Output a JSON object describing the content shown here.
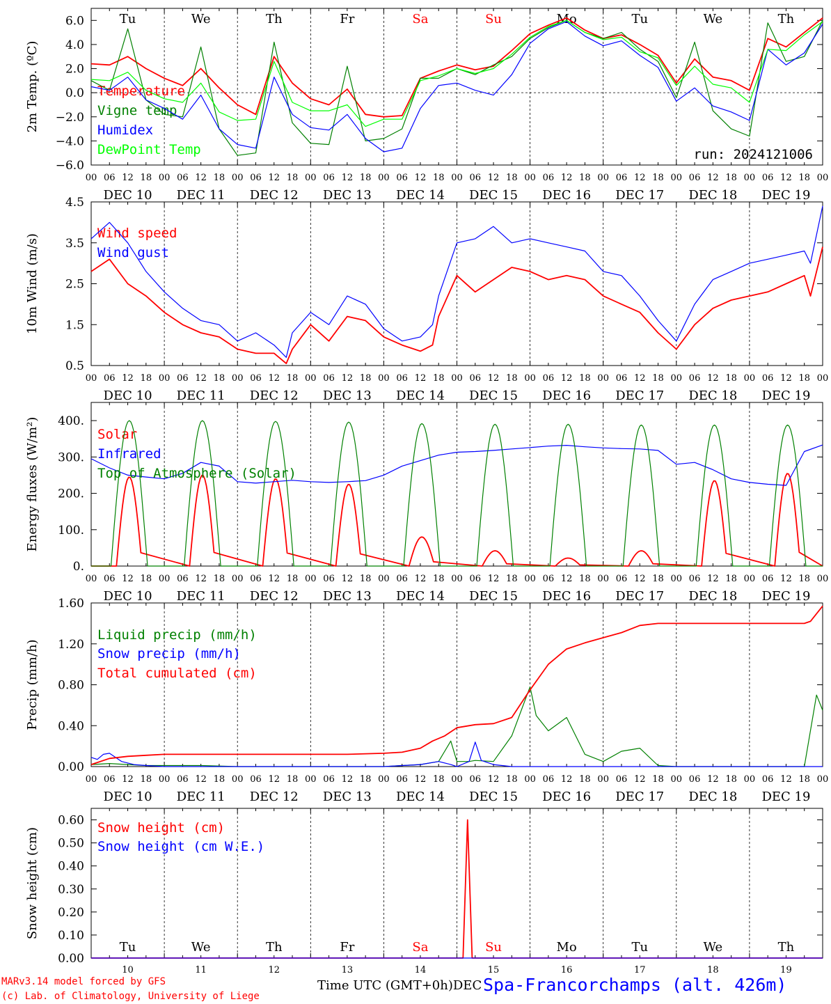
{
  "run_label": "run: 2024121006",
  "footer": {
    "model": "MARv3.14 model forced by GFS",
    "credit": "(c) Lab. of Climatology, University of Liege",
    "time_axis": "Time UTC (GMT+0h)",
    "axis_word": "DEC",
    "station": "Spa-Francorchamps (alt. 426m)"
  },
  "colors": {
    "red": "#ff0000",
    "green": "#008000",
    "blue": "#0000ff",
    "lightgreen": "#00ff00"
  },
  "weekdays": [
    "Tu",
    "We",
    "Th",
    "Fr",
    "Sa",
    "Su",
    "Mo",
    "Tu",
    "We",
    "Th"
  ],
  "weekday_colors": [
    "#000000",
    "#000000",
    "#000000",
    "#000000",
    "#ff0000",
    "#ff0000",
    "#000000",
    "#000000",
    "#000000",
    "#000000"
  ],
  "hour_ticks": [
    "00",
    "06",
    "12",
    "18"
  ],
  "final_hour_tick": "00",
  "date_labels": [
    "DEC 10",
    "DEC 11",
    "DEC 12",
    "DEC 13",
    "DEC 14",
    "DEC 15",
    "DEC 16",
    "DEC 17",
    "DEC 18",
    "DEC 19"
  ],
  "day_numbers": [
    "10",
    "11",
    "12",
    "13",
    "14",
    "15",
    "16",
    "17",
    "18",
    "19"
  ],
  "chart_data": [
    {
      "type": "line",
      "ylabel": "2m Temp. (ºC)",
      "ylim": [
        -6,
        7
      ],
      "yticks": [
        -6,
        -4,
        -2,
        0,
        2,
        4,
        6
      ],
      "ytick_labels": [
        "−6.0",
        "−4.0",
        "−2.0",
        "0.0",
        "2.0",
        "4.0",
        "6.0"
      ],
      "zero_line": true,
      "x_unit": "hours since 2024-12-10 00 UTC",
      "xlim": [
        0,
        240
      ],
      "series": [
        {
          "name": "Temperature",
          "color": "#ff0000",
          "x": [
            0,
            6,
            12,
            18,
            24,
            30,
            36,
            42,
            48,
            54,
            60,
            66,
            72,
            78,
            84,
            90,
            96,
            102,
            108,
            114,
            120,
            126,
            132,
            138,
            144,
            150,
            156,
            162,
            168,
            174,
            180,
            186,
            192,
            198,
            204,
            210,
            216,
            222,
            228,
            234,
            240
          ],
          "values": [
            2.4,
            2.3,
            3.0,
            2.0,
            1.2,
            0.6,
            2.0,
            0.4,
            -1.0,
            -1.8,
            3.0,
            0.8,
            -0.5,
            -1.0,
            0.3,
            -1.8,
            -2.0,
            -1.9,
            1.2,
            1.8,
            2.3,
            1.9,
            2.2,
            3.5,
            4.9,
            5.6,
            6.2,
            5.2,
            4.5,
            4.8,
            4.0,
            3.1,
            0.8,
            2.8,
            1.3,
            1.0,
            0.2,
            4.5,
            3.8,
            5.0,
            6.2
          ]
        },
        {
          "name": "Vigne temp",
          "color": "#008000",
          "x": [
            0,
            6,
            12,
            18,
            24,
            30,
            36,
            42,
            48,
            54,
            60,
            66,
            72,
            78,
            84,
            90,
            96,
            102,
            108,
            114,
            120,
            126,
            132,
            138,
            144,
            150,
            156,
            162,
            168,
            174,
            180,
            186,
            192,
            198,
            204,
            210,
            216,
            222,
            228,
            234,
            240
          ],
          "values": [
            1.0,
            0.2,
            5.3,
            -0.6,
            -1.8,
            -2.0,
            3.8,
            -3.0,
            -5.2,
            -5.0,
            4.2,
            -2.5,
            -4.2,
            -4.3,
            2.2,
            -4.0,
            -3.8,
            -3.0,
            1.2,
            1.2,
            2.0,
            1.5,
            2.3,
            3.0,
            4.5,
            5.4,
            6.0,
            5.0,
            4.5,
            5.0,
            3.6,
            2.6,
            -0.4,
            4.2,
            -1.5,
            -3.0,
            -3.6,
            5.8,
            2.6,
            3.0,
            6.0
          ]
        },
        {
          "name": "Humidex",
          "color": "#0000ff",
          "x": [
            0,
            6,
            12,
            18,
            24,
            30,
            36,
            42,
            48,
            54,
            60,
            66,
            72,
            78,
            84,
            90,
            96,
            102,
            108,
            114,
            120,
            126,
            132,
            138,
            144,
            150,
            156,
            162,
            168,
            174,
            180,
            186,
            192,
            198,
            204,
            210,
            216,
            222,
            228,
            234,
            240
          ],
          "values": [
            0.5,
            0.2,
            1.3,
            -0.6,
            -1.3,
            -2.2,
            -0.2,
            -3.0,
            -4.3,
            -4.6,
            1.3,
            -1.8,
            -2.9,
            -3.1,
            -1.8,
            -3.8,
            -4.9,
            -4.6,
            -1.3,
            0.6,
            0.8,
            0.2,
            -0.2,
            1.5,
            4.1,
            5.3,
            5.9,
            4.7,
            3.9,
            4.3,
            3.1,
            2.1,
            -0.7,
            0.4,
            -1.1,
            -1.6,
            -2.3,
            3.6,
            2.3,
            3.3,
            5.7
          ]
        },
        {
          "name": "DewPoint Temp",
          "color": "#00ff00",
          "x": [
            0,
            6,
            12,
            18,
            24,
            30,
            36,
            42,
            48,
            54,
            60,
            66,
            72,
            78,
            84,
            90,
            96,
            102,
            108,
            114,
            120,
            126,
            132,
            138,
            144,
            150,
            156,
            162,
            168,
            174,
            180,
            186,
            192,
            198,
            204,
            210,
            216,
            222,
            228,
            234,
            240
          ],
          "values": [
            1.1,
            1.0,
            1.7,
            0.2,
            -0.5,
            -0.8,
            0.8,
            -1.6,
            -2.3,
            -2.2,
            2.6,
            -0.8,
            -1.5,
            -1.5,
            -1.0,
            -2.8,
            -2.2,
            -2.2,
            1.0,
            1.4,
            2.0,
            1.6,
            2.0,
            3.2,
            4.6,
            5.5,
            6.0,
            5.0,
            4.4,
            4.6,
            3.4,
            2.9,
            0.6,
            2.2,
            0.7,
            0.4,
            -0.8,
            3.6,
            3.5,
            4.8,
            5.9
          ]
        }
      ]
    },
    {
      "type": "line",
      "ylabel": "10m Wind (m/s)",
      "ylim": [
        0.5,
        4.5
      ],
      "yticks": [
        0.5,
        1.5,
        2.5,
        3.5,
        4.5
      ],
      "ytick_labels": [
        "0.5",
        "1.5",
        "2.5",
        "3.5",
        "4.5"
      ],
      "x_unit": "hours since 2024-12-10 00 UTC",
      "xlim": [
        0,
        240
      ],
      "series": [
        {
          "name": "Wind speed",
          "color": "#ff0000",
          "x": [
            0,
            6,
            12,
            18,
            24,
            30,
            36,
            42,
            48,
            54,
            60,
            64,
            66,
            72,
            78,
            84,
            90,
            96,
            102,
            108,
            112,
            114,
            120,
            126,
            132,
            138,
            144,
            150,
            156,
            162,
            168,
            174,
            180,
            186,
            192,
            198,
            204,
            210,
            216,
            222,
            228,
            234,
            236,
            240
          ],
          "values": [
            2.8,
            3.1,
            2.5,
            2.2,
            1.8,
            1.5,
            1.3,
            1.2,
            0.9,
            0.8,
            0.8,
            0.55,
            0.9,
            1.5,
            1.1,
            1.7,
            1.6,
            1.2,
            1.0,
            0.85,
            1.0,
            1.7,
            2.7,
            2.3,
            2.6,
            2.9,
            2.8,
            2.6,
            2.7,
            2.6,
            2.2,
            2.0,
            1.8,
            1.3,
            0.9,
            1.5,
            1.9,
            2.1,
            2.2,
            2.3,
            2.5,
            2.7,
            2.2,
            3.4
          ]
        },
        {
          "name": "Wind gust",
          "color": "#0000ff",
          "x": [
            0,
            6,
            12,
            18,
            24,
            30,
            36,
            42,
            48,
            54,
            60,
            64,
            66,
            72,
            78,
            84,
            90,
            96,
            102,
            108,
            112,
            114,
            120,
            126,
            132,
            138,
            144,
            150,
            156,
            162,
            168,
            174,
            180,
            186,
            192,
            198,
            204,
            210,
            216,
            222,
            228,
            234,
            236,
            240
          ],
          "values": [
            3.6,
            4.0,
            3.5,
            2.8,
            2.3,
            1.9,
            1.6,
            1.5,
            1.1,
            1.3,
            1.0,
            0.7,
            1.3,
            1.8,
            1.5,
            2.2,
            2.0,
            1.4,
            1.1,
            1.2,
            1.5,
            2.2,
            3.5,
            3.6,
            3.9,
            3.5,
            3.6,
            3.5,
            3.4,
            3.3,
            2.8,
            2.7,
            2.2,
            1.6,
            1.1,
            2.0,
            2.6,
            2.8,
            3.0,
            3.1,
            3.2,
            3.3,
            3.0,
            4.4
          ]
        }
      ]
    },
    {
      "type": "line",
      "ylabel": "Energy fluxes (W/m²)",
      "ylim": [
        0,
        450
      ],
      "yticks": [
        0,
        100,
        200,
        300,
        400
      ],
      "ytick_labels": [
        "0.",
        "100.",
        "200.",
        "300.",
        "400."
      ],
      "x_unit": "hours since 2024-12-10 00 UTC",
      "xlim": [
        0,
        240
      ],
      "diurnal": {
        "solar_peaks": [
          245,
          250,
          240,
          225,
          80,
          42,
          22,
          42,
          235,
          255
        ],
        "toa_peaks": [
          400,
          400,
          398,
          396,
          392,
          390,
          390,
          388,
          388,
          388
        ],
        "peak_hour": 12.5
      },
      "series": [
        {
          "name": "Solar",
          "color": "#ff0000"
        },
        {
          "name": "Infrared",
          "color": "#0000ff",
          "x": [
            0,
            6,
            12,
            18,
            24,
            30,
            36,
            42,
            48,
            54,
            60,
            66,
            72,
            78,
            84,
            90,
            96,
            102,
            108,
            114,
            120,
            126,
            132,
            138,
            144,
            150,
            156,
            162,
            168,
            174,
            180,
            186,
            192,
            198,
            204,
            210,
            216,
            222,
            228,
            234,
            240
          ],
          "values": [
            295,
            270,
            250,
            245,
            240,
            255,
            285,
            275,
            232,
            228,
            232,
            236,
            232,
            230,
            232,
            235,
            250,
            275,
            290,
            305,
            313,
            315,
            318,
            322,
            326,
            330,
            332,
            328,
            325,
            323,
            322,
            318,
            280,
            285,
            265,
            240,
            230,
            225,
            222,
            315,
            333
          ]
        },
        {
          "name": "Top of Atmosphere (Solar)",
          "color": "#008000"
        }
      ]
    },
    {
      "type": "line",
      "ylabel": "Precip (mm/h)",
      "ylim": [
        0,
        1.6
      ],
      "yticks": [
        0,
        0.4,
        0.8,
        1.2,
        1.6
      ],
      "ytick_labels": [
        "0.00",
        "0.40",
        "0.80",
        "1.20",
        "1.60"
      ],
      "x_unit": "hours since 2024-12-10 00 UTC",
      "xlim": [
        0,
        240
      ],
      "series": [
        {
          "name": "Liquid precip (mm/h)",
          "color": "#008000",
          "x": [
            0,
            6,
            12,
            18,
            24,
            36,
            48,
            60,
            72,
            84,
            96,
            102,
            108,
            114,
            118,
            120,
            124,
            126,
            132,
            138,
            144,
            146,
            150,
            156,
            162,
            168,
            174,
            180,
            186,
            192,
            198,
            204,
            210,
            216,
            222,
            228,
            234,
            238,
            240
          ],
          "values": [
            0.02,
            0.03,
            0.02,
            0.01,
            0.01,
            0.01,
            0.0,
            0.0,
            0.0,
            0.0,
            0.0,
            0.01,
            0.02,
            0.05,
            0.25,
            0.05,
            0.05,
            0.06,
            0.05,
            0.3,
            0.78,
            0.5,
            0.35,
            0.48,
            0.12,
            0.05,
            0.15,
            0.18,
            0.01,
            0.0,
            0.0,
            0.0,
            0.0,
            0.0,
            0.0,
            0.0,
            0.0,
            0.7,
            0.55
          ]
        },
        {
          "name": "Snow precip (mm/h)",
          "color": "#0000ff",
          "x": [
            0,
            2,
            4,
            6,
            10,
            14,
            18,
            24,
            36,
            48,
            60,
            72,
            84,
            96,
            108,
            114,
            118,
            120,
            124,
            126,
            128,
            132,
            138,
            144,
            150,
            160,
            180,
            200,
            220,
            240
          ],
          "values": [
            0.09,
            0.07,
            0.12,
            0.13,
            0.05,
            0.02,
            0.01,
            0.0,
            0.0,
            0.0,
            0.0,
            0.0,
            0.0,
            0.0,
            0.02,
            0.05,
            0.02,
            0.0,
            0.05,
            0.24,
            0.06,
            0.02,
            0.0,
            0.0,
            0.0,
            0.0,
            0.0,
            0.0,
            0.0,
            0.0
          ]
        },
        {
          "name": "Total cumulated (cm)",
          "color": "#ff0000",
          "x": [
            0,
            6,
            12,
            18,
            24,
            36,
            48,
            60,
            72,
            84,
            96,
            102,
            108,
            112,
            116,
            120,
            126,
            132,
            138,
            144,
            150,
            156,
            162,
            168,
            174,
            180,
            186,
            192,
            198,
            204,
            210,
            216,
            222,
            228,
            234,
            236,
            240
          ],
          "values": [
            0.02,
            0.08,
            0.1,
            0.11,
            0.12,
            0.12,
            0.12,
            0.12,
            0.12,
            0.12,
            0.13,
            0.14,
            0.18,
            0.25,
            0.3,
            0.38,
            0.41,
            0.42,
            0.48,
            0.75,
            1.0,
            1.15,
            1.21,
            1.26,
            1.31,
            1.38,
            1.4,
            1.4,
            1.4,
            1.4,
            1.4,
            1.4,
            1.4,
            1.4,
            1.4,
            1.42,
            1.57
          ]
        }
      ]
    },
    {
      "type": "line",
      "ylabel": "Snow height (cm)",
      "ylim": [
        0,
        0.65
      ],
      "yticks": [
        0,
        0.1,
        0.2,
        0.3,
        0.4,
        0.5,
        0.6
      ],
      "ytick_labels": [
        "0.00",
        "0.10",
        "0.20",
        "0.30",
        "0.40",
        "0.50",
        "0.60"
      ],
      "x_unit": "hours since 2024-12-10 00 UTC",
      "xlim": [
        0,
        240
      ],
      "series": [
        {
          "name": "Snow height (cm)",
          "color": "#ff0000",
          "x": [
            0,
            122,
            123.5,
            125,
            240
          ],
          "values": [
            0,
            0,
            0.6,
            0,
            0
          ]
        },
        {
          "name": "Snow height (cm W.E.)",
          "color": "#0000ff",
          "x": [
            0,
            240
          ],
          "values": [
            0,
            0
          ]
        }
      ]
    }
  ]
}
